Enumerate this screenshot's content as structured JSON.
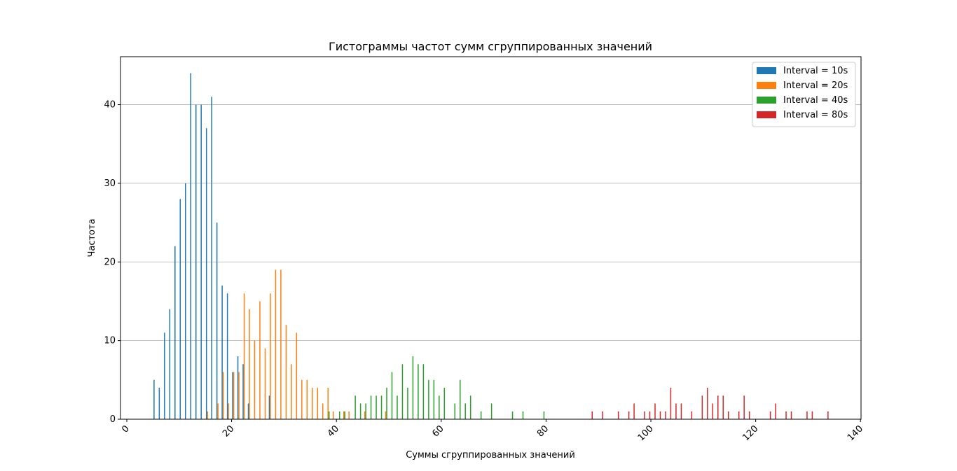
{
  "chart_data": {
    "type": "histogram",
    "title": "Гистограммы частот сумм сгруппированных значений",
    "x_label": "Суммы сгруппированных значений",
    "y_label": "Частота",
    "xlim": [
      -1.2,
      140.1
    ],
    "ylim": [
      0,
      46.1
    ],
    "xticks": [
      0,
      20,
      40,
      60,
      80,
      100,
      120,
      140
    ],
    "yticks": [
      0,
      10,
      20,
      30,
      40
    ],
    "grid": "y",
    "legend": "upper right",
    "series": [
      {
        "name": "Interval = 10s",
        "color": "#1f77b4",
        "x": [
          5,
          6,
          7,
          8,
          9,
          10,
          11,
          12,
          13,
          14,
          15,
          16,
          17,
          18,
          19,
          20,
          21,
          22,
          23,
          27
        ],
        "values": [
          5,
          4,
          11,
          14,
          22,
          28,
          30,
          44,
          40,
          40,
          37,
          41,
          25,
          17,
          16,
          6,
          8,
          7,
          2,
          3
        ]
      },
      {
        "name": "Interval = 20s",
        "color": "#ff7f0e",
        "x": [
          15,
          17,
          18,
          19,
          20,
          21,
          22,
          23,
          24,
          25,
          26,
          27,
          28,
          29,
          30,
          31,
          32,
          33,
          34,
          35,
          36,
          37,
          38,
          39,
          41,
          42,
          45,
          49
        ],
        "values": [
          1,
          2,
          6,
          2,
          6,
          6,
          16,
          14,
          10,
          15,
          9,
          16,
          19,
          19,
          12,
          7,
          11,
          5,
          5,
          4,
          4,
          2,
          4,
          1,
          1,
          1,
          1,
          1
        ]
      },
      {
        "name": "Interval = 40s",
        "color": "#2ca02c",
        "x": [
          38,
          40,
          41,
          43,
          44,
          45,
          46,
          47,
          48,
          49,
          50,
          51,
          52,
          53,
          54,
          55,
          56,
          57,
          58,
          59,
          60,
          62,
          63,
          64,
          65,
          67,
          69,
          73,
          75,
          79
        ],
        "values": [
          1,
          1,
          1,
          3,
          2,
          2,
          3,
          3,
          3,
          4,
          6,
          3,
          7,
          4,
          8,
          7,
          7,
          5,
          5,
          3,
          4,
          2,
          5,
          2,
          3,
          1,
          2,
          1,
          1,
          1
        ]
      },
      {
        "name": "Interval = 80s",
        "color": "#d62728",
        "x": [
          88,
          90,
          93,
          95,
          96,
          98,
          99,
          100,
          101,
          102,
          103,
          104,
          105,
          107,
          109,
          110,
          111,
          112,
          113,
          114,
          116,
          117,
          118,
          122,
          123,
          125,
          126,
          129,
          130,
          133
        ],
        "values": [
          1,
          1,
          1,
          1,
          2,
          1,
          1,
          2,
          1,
          1,
          4,
          2,
          2,
          1,
          3,
          4,
          2,
          3,
          3,
          1,
          1,
          3,
          1,
          1,
          2,
          1,
          1,
          1,
          1,
          1
        ]
      }
    ]
  }
}
